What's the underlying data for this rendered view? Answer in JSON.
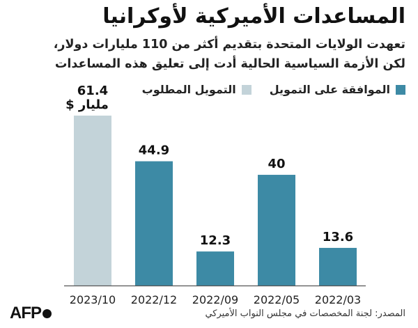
{
  "header": {
    "title": "المساعدات الأميركية لأوكرانيا",
    "subtitle_lines": [
      "تعهدت الولايات المتحدة بتقديم أكثر من 110 مليارات دولار،",
      "لكن الأزمة السياسية الحالية أدت إلى تعليق هذه المساعدات"
    ]
  },
  "colors": {
    "approved": "#3d8aa5",
    "requested": "#c3d3d9",
    "baseline": "#555555"
  },
  "chart_data": {
    "type": "bar",
    "categories": [
      "2023/10",
      "2022/12",
      "2022/09",
      "2022/05",
      "2022/03"
    ],
    "values": [
      61.4,
      44.9,
      12.3,
      40,
      13.6
    ],
    "value_labels": [
      "61.4",
      "44.9",
      "12.3",
      "40",
      "13.6"
    ],
    "bar_series": [
      "requested",
      "approved",
      "approved",
      "approved",
      "approved"
    ],
    "unit_label": "مليار $",
    "legend": [
      {
        "key": "approved",
        "label": "الموافقة على التمويل"
      },
      {
        "key": "requested",
        "label": "التمويل المطلوب"
      }
    ],
    "ylim": [
      0,
      61.4
    ],
    "grid": false
  },
  "footer": {
    "source": "المصدر: لجنة المخصصات في مجلس النواب الأميركي",
    "logo_text": "AFP"
  }
}
